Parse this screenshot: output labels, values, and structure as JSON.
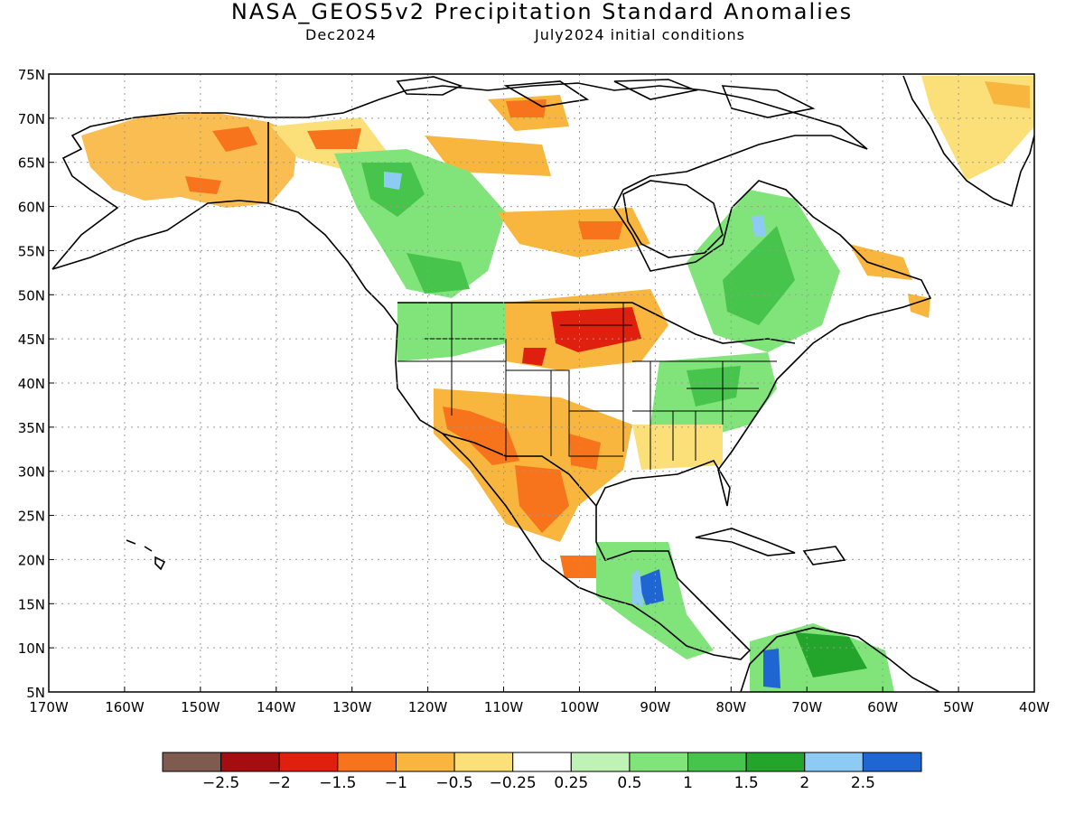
{
  "header": {
    "title": "NASA_GEOS5v2 Precipitation Standard Anomalies",
    "left_subtitle": "Dec2024",
    "right_subtitle": "July2024 initial conditions"
  },
  "map": {
    "projection": "latitude-longitude",
    "lat_range": [
      5,
      75
    ],
    "lon_range": [
      -170,
      -40
    ],
    "lat_labels": [
      "75N",
      "70N",
      "65N",
      "60N",
      "55N",
      "50N",
      "45N",
      "40N",
      "35N",
      "30N",
      "25N",
      "20N",
      "15N",
      "10N",
      "5N"
    ],
    "lon_labels": [
      "170W",
      "160W",
      "150W",
      "140W",
      "130W",
      "120W",
      "110W",
      "100W",
      "90W",
      "80W",
      "70W",
      "60W",
      "50W",
      "40W"
    ],
    "grid": "dotted",
    "regions": [
      {
        "name": "alaska",
        "anomaly": "dry",
        "lon": [
          -165,
          -142
        ],
        "lat": [
          60,
          70
        ]
      },
      {
        "name": "western-canada",
        "anomaly": "wet",
        "lon": [
          -130,
          -110
        ],
        "lat": [
          48,
          65
        ]
      },
      {
        "name": "northern-plains",
        "anomaly": "dry",
        "lon": [
          -110,
          -90
        ],
        "lat": [
          42,
          50
        ]
      },
      {
        "name": "southwest-us-mexico",
        "anomaly": "dry",
        "lon": [
          -117,
          -95
        ],
        "lat": [
          20,
          38
        ]
      },
      {
        "name": "ohio-valley",
        "anomaly": "wet",
        "lon": [
          -90,
          -75
        ],
        "lat": [
          34,
          42
        ]
      },
      {
        "name": "quebec-labrador",
        "anomaly": "wet",
        "lon": [
          -80,
          -62
        ],
        "lat": [
          46,
          62
        ]
      },
      {
        "name": "central-america",
        "anomaly": "wet",
        "lon": [
          -93,
          -84
        ],
        "lat": [
          13,
          20
        ]
      },
      {
        "name": "northern-south-america",
        "anomaly": "wet",
        "lon": [
          -78,
          -60
        ],
        "lat": [
          5,
          10
        ]
      },
      {
        "name": "greenland",
        "anomaly": "dry",
        "lon": [
          -52,
          -40
        ],
        "lat": [
          63,
          75
        ]
      }
    ]
  },
  "colorbar": {
    "colors": [
      "#7f5a4e",
      "#a60d10",
      "#e0200e",
      "#f7731c",
      "#f8b63e",
      "#fbe07a",
      "#ffffff",
      "#bff2b5",
      "#80e47a",
      "#46c44c",
      "#22a52a",
      "#8ecbf4",
      "#1f66d3"
    ],
    "labels": [
      "−2.5",
      "−2",
      "−1.5",
      "−1",
      "−0.5",
      "−0.25",
      "0.25",
      "0.5",
      "1",
      "1.5",
      "2",
      "2.5"
    ]
  }
}
